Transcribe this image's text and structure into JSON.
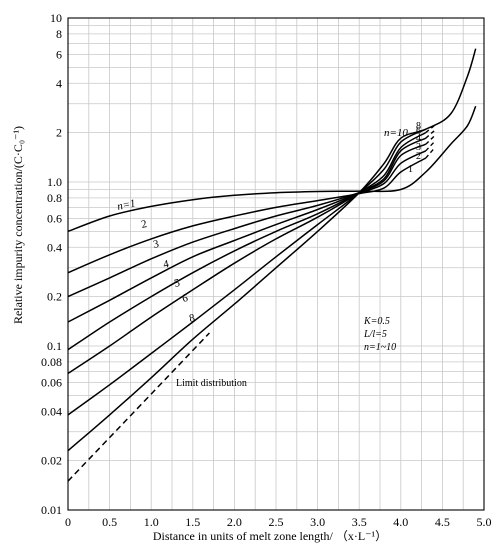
{
  "chart_data": {
    "type": "line",
    "xlabel": "Distance in units of melt zone length/ （x·L⁻¹）",
    "ylabel": "Relative impurity concentration/(C·C₀⁻¹)",
    "x_scale": "linear",
    "y_scale": "log",
    "xlim": [
      0,
      5
    ],
    "ylim": [
      0.01,
      10
    ],
    "x_ticks": [
      "0",
      "0.5",
      "1.0",
      "1.5",
      "2.0",
      "2.5",
      "3.0",
      "3.5",
      "4.0",
      "4.5",
      "5.0"
    ],
    "y_ticks": [
      {
        "v": 0.01,
        "t": "0.01"
      },
      {
        "v": 0.02,
        "t": "0.02"
      },
      {
        "v": 0.04,
        "t": "0.04"
      },
      {
        "v": 0.06,
        "t": "0.06"
      },
      {
        "v": 0.08,
        "t": "0.08"
      },
      {
        "v": 0.1,
        "t": "0.1"
      },
      {
        "v": 0.2,
        "t": "0.2"
      },
      {
        "v": 0.4,
        "t": "0.4"
      },
      {
        "v": 0.6,
        "t": "0.6"
      },
      {
        "v": 0.8,
        "t": "0.8"
      },
      {
        "v": 1.0,
        "t": "1.0"
      },
      {
        "v": 2,
        "t": "2"
      },
      {
        "v": 4,
        "t": "4"
      },
      {
        "v": 6,
        "t": "6"
      },
      {
        "v": 8,
        "t": "8"
      },
      {
        "v": 10,
        "t": "10"
      }
    ],
    "grid": true,
    "annotation": {
      "k": "K=0.5",
      "ratio": "L/l=5",
      "n_range": "n=1~10"
    },
    "limit_label": "Limit distribution",
    "series": [
      {
        "label": "n=1",
        "points": [
          [
            0,
            0.5
          ],
          [
            0.5,
            0.62
          ],
          [
            1,
            0.71
          ],
          [
            1.5,
            0.78
          ],
          [
            2,
            0.83
          ],
          [
            2.5,
            0.86
          ],
          [
            3,
            0.875
          ],
          [
            3.5,
            0.88
          ],
          [
            4,
            0.9
          ],
          [
            4.3,
            1.15
          ],
          [
            4.6,
            1.7
          ],
          [
            4.8,
            2.2
          ],
          [
            4.9,
            2.9
          ]
        ]
      },
      {
        "label": "2",
        "points": [
          [
            0,
            0.28
          ],
          [
            0.5,
            0.36
          ],
          [
            1,
            0.45
          ],
          [
            1.5,
            0.54
          ],
          [
            2,
            0.62
          ],
          [
            2.5,
            0.7
          ],
          [
            3,
            0.77
          ],
          [
            3.5,
            0.85
          ],
          [
            3.8,
            0.92
          ],
          [
            4,
            1.15
          ],
          [
            4.3,
            1.4
          ]
        ]
      },
      {
        "label": "3",
        "points": [
          [
            0,
            0.2
          ],
          [
            0.5,
            0.26
          ],
          [
            1,
            0.34
          ],
          [
            1.5,
            0.43
          ],
          [
            2,
            0.52
          ],
          [
            2.5,
            0.62
          ],
          [
            3,
            0.72
          ],
          [
            3.5,
            0.86
          ],
          [
            3.8,
            0.98
          ],
          [
            4,
            1.3
          ],
          [
            4.3,
            1.55
          ]
        ]
      },
      {
        "label": "4",
        "points": [
          [
            0,
            0.14
          ],
          [
            0.5,
            0.19
          ],
          [
            1,
            0.26
          ],
          [
            1.5,
            0.35
          ],
          [
            2,
            0.44
          ],
          [
            2.5,
            0.55
          ],
          [
            3,
            0.68
          ],
          [
            3.5,
            0.86
          ],
          [
            3.8,
            1.02
          ],
          [
            4,
            1.45
          ],
          [
            4.3,
            1.7
          ]
        ]
      },
      {
        "label": "5",
        "points": [
          [
            0,
            0.095
          ],
          [
            0.5,
            0.14
          ],
          [
            1,
            0.2
          ],
          [
            1.5,
            0.28
          ],
          [
            2,
            0.38
          ],
          [
            2.5,
            0.5
          ],
          [
            3,
            0.64
          ],
          [
            3.5,
            0.86
          ],
          [
            3.8,
            1.05
          ],
          [
            4,
            1.55
          ],
          [
            4.3,
            1.85
          ]
        ]
      },
      {
        "label": "6",
        "points": [
          [
            0,
            0.068
          ],
          [
            0.5,
            0.1
          ],
          [
            1,
            0.15
          ],
          [
            1.5,
            0.22
          ],
          [
            2,
            0.32
          ],
          [
            2.5,
            0.45
          ],
          [
            3,
            0.61
          ],
          [
            3.5,
            0.86
          ],
          [
            3.8,
            1.1
          ],
          [
            4,
            1.62
          ],
          [
            4.3,
            2.0
          ]
        ]
      },
      {
        "label": "8",
        "points": [
          [
            0,
            0.038
          ],
          [
            0.5,
            0.058
          ],
          [
            1,
            0.09
          ],
          [
            1.5,
            0.14
          ],
          [
            2,
            0.22
          ],
          [
            2.5,
            0.35
          ],
          [
            3,
            0.55
          ],
          [
            3.5,
            0.86
          ],
          [
            3.8,
            1.2
          ],
          [
            4,
            1.75
          ],
          [
            4.3,
            2.1
          ]
        ]
      },
      {
        "label": "n=10",
        "points": [
          [
            0,
            0.023
          ],
          [
            0.5,
            0.038
          ],
          [
            1,
            0.064
          ],
          [
            1.5,
            0.11
          ],
          [
            2,
            0.18
          ],
          [
            2.5,
            0.3
          ],
          [
            3,
            0.5
          ],
          [
            3.5,
            0.86
          ],
          [
            3.8,
            1.3
          ],
          [
            4,
            1.85
          ],
          [
            4.3,
            2.1
          ],
          [
            4.6,
            2.6
          ],
          [
            4.8,
            4.4
          ],
          [
            4.9,
            6.5
          ]
        ]
      }
    ],
    "dashed_extensions": [
      {
        "points": [
          [
            4.3,
            1.4
          ],
          [
            4.4,
            1.6
          ]
        ]
      },
      {
        "points": [
          [
            4.3,
            1.55
          ],
          [
            4.4,
            1.75
          ]
        ]
      },
      {
        "points": [
          [
            4.3,
            1.7
          ],
          [
            4.4,
            1.9
          ]
        ]
      },
      {
        "points": [
          [
            4.3,
            1.85
          ],
          [
            4.4,
            2.05
          ]
        ]
      },
      {
        "points": [
          [
            4.3,
            2.0
          ],
          [
            4.4,
            2.2
          ]
        ]
      }
    ],
    "limit_distribution": {
      "points": [
        [
          0,
          0.015
        ],
        [
          1.7,
          0.12
        ]
      ]
    }
  }
}
